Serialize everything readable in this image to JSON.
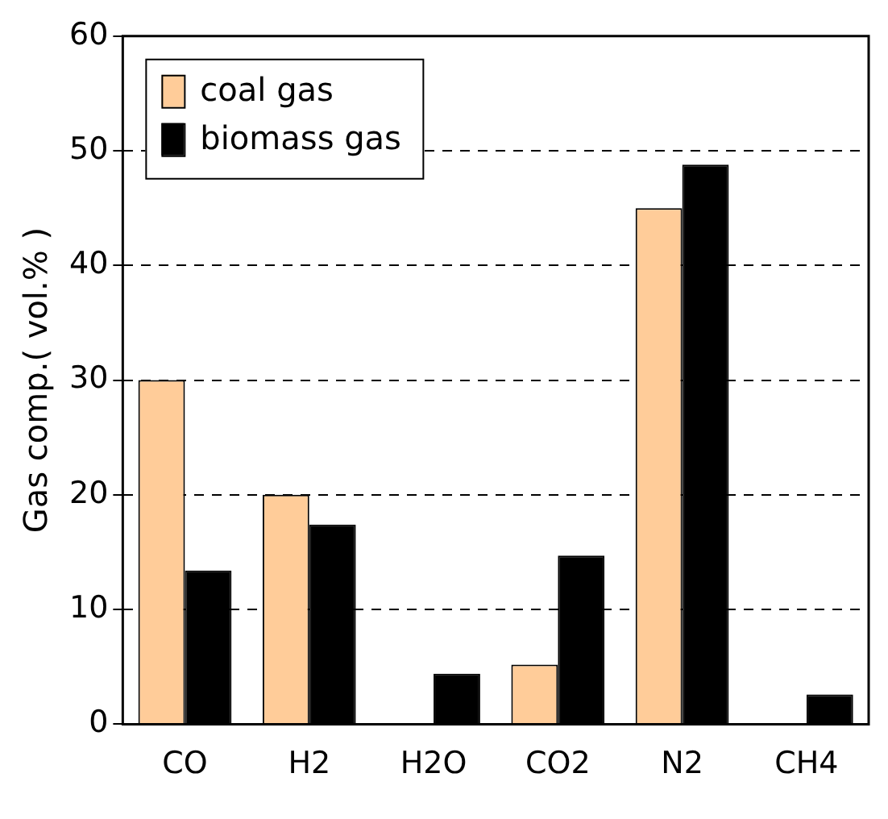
{
  "chart_data": {
    "type": "bar",
    "ylabel": "Gas comp.( vol.% )",
    "categories": [
      "CO",
      "H2",
      "H2O",
      "CO2",
      "N2",
      "CH4"
    ],
    "series": [
      {
        "name": "coal gas",
        "color": "#ffcc99",
        "values": [
          30,
          20,
          0,
          5.2,
          45,
          0
        ]
      },
      {
        "name": "biomass gas",
        "color": "#000000",
        "values": [
          13.4,
          17.4,
          4.4,
          14.7,
          48.8,
          2.6
        ]
      }
    ],
    "ylim": [
      0,
      60
    ],
    "yticks": [
      0,
      10,
      20,
      30,
      40,
      50,
      60
    ],
    "grid": "y",
    "legend": "top left"
  }
}
